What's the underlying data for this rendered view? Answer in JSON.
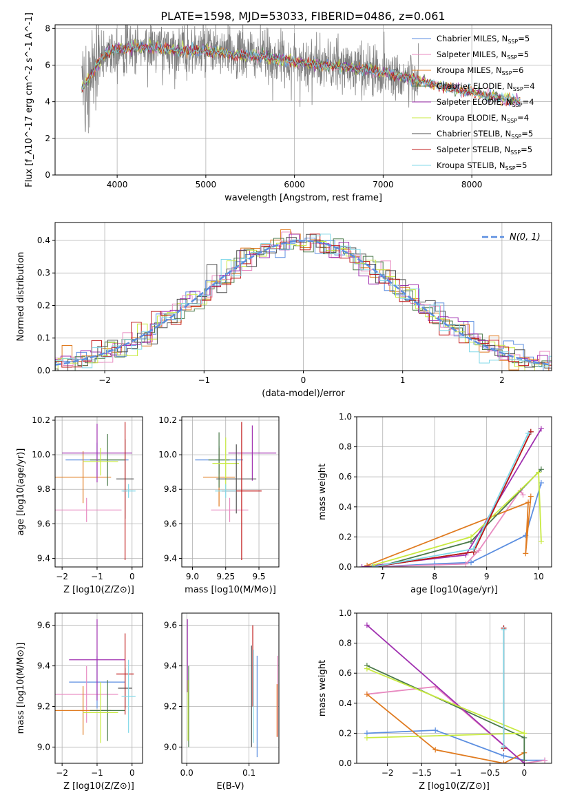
{
  "figure": {
    "title": "PLATE=1598, MJD=53033, FIBERID=0486, z=0.061"
  },
  "legend": [
    {
      "name": "Chabrier MILES, N",
      "sub": "SSP",
      "val": "=5",
      "color": "#5b8ee0"
    },
    {
      "name": "Salpeter MILES, N",
      "sub": "SSP",
      "val": "=5",
      "color": "#e88ac0"
    },
    {
      "name": "Kroupa MILES, N",
      "sub": "SSP",
      "val": "=6",
      "color": "#e07b20"
    },
    {
      "name": "Chabrier ELODIE, N",
      "sub": "SSP",
      "val": "=4",
      "color": "#4a7a4a"
    },
    {
      "name": "Salpeter ELODIE, N",
      "sub": "SSP",
      "val": "=4",
      "color": "#a030b0"
    },
    {
      "name": "Kroupa ELODIE, N",
      "sub": "SSP",
      "val": "=4",
      "color": "#c8ea40"
    },
    {
      "name": "Chabrier STELIB, N",
      "sub": "SSP",
      "val": "=5",
      "color": "#505050"
    },
    {
      "name": "Salpeter STELIB, N",
      "sub": "SSP",
      "val": "=5",
      "color": "#c01818"
    },
    {
      "name": "Kroupa STELIB, N",
      "sub": "SSP",
      "val": "=5",
      "color": "#80d8e8"
    }
  ],
  "chart_data": [
    {
      "id": "spectrum",
      "type": "line",
      "xlabel": "wavelength [Angstrom, rest frame]",
      "ylabel": "Flux [f_λ10^-17 erg cm^-2 s^-1 A^-1]",
      "xlim": [
        3300,
        8900
      ],
      "ylim": [
        0,
        8.2
      ],
      "xticks": [
        4000,
        5000,
        6000,
        7000,
        8000
      ],
      "yticks": [
        0,
        2,
        4,
        6,
        8
      ],
      "data_color": "#808080",
      "data_range": [
        3600,
        7400
      ],
      "model_range": [
        3600,
        8550
      ],
      "model_points": [
        [
          3600,
          4.7
        ],
        [
          3700,
          5.4
        ],
        [
          3800,
          6.2
        ],
        [
          3900,
          6.8
        ],
        [
          4000,
          6.9
        ],
        [
          4200,
          7.0
        ],
        [
          4500,
          6.9
        ],
        [
          4800,
          6.8
        ],
        [
          5000,
          6.8
        ],
        [
          5300,
          6.6
        ],
        [
          5600,
          6.5
        ],
        [
          6000,
          6.2
        ],
        [
          6300,
          6.0
        ],
        [
          6600,
          5.9
        ],
        [
          6900,
          5.7
        ],
        [
          7200,
          5.4
        ],
        [
          7500,
          5.0
        ],
        [
          7800,
          4.7
        ],
        [
          8100,
          4.4
        ],
        [
          8300,
          4.2
        ],
        [
          8550,
          4.0
        ]
      ]
    },
    {
      "id": "residuals",
      "type": "histogram",
      "xlabel": "(data-model)/error",
      "ylabel": "Normed distribution",
      "xlim": [
        -2.5,
        2.5
      ],
      "ylim": [
        0,
        0.455
      ],
      "xticks": [
        -2,
        -1,
        0,
        1,
        2
      ],
      "yticks": [
        0.0,
        0.1,
        0.2,
        0.3,
        0.4
      ],
      "gaussian_label": "N(0, 1)",
      "gaussian_color": "#5b8ee0",
      "bin_width": 0.1
    },
    {
      "id": "age-vs-Z",
      "type": "scatter",
      "xlabel": "Z [log10(Z/Z⊙)]",
      "ylabel": "age  [log10(age/yr)]",
      "xlim": [
        -2.2,
        0.3
      ],
      "ylim": [
        9.35,
        10.22
      ],
      "xticks": [
        -2,
        -1,
        0
      ],
      "yticks": [
        9.4,
        9.6,
        9.8,
        10.0,
        10.2
      ],
      "points": [
        {
          "x": -1.0,
          "y": 9.97,
          "xerr": 0.9,
          "yerr": 0.1,
          "color": "#5b8ee0"
        },
        {
          "x": -1.3,
          "y": 9.68,
          "xerr": 1.0,
          "yerr": 0.07,
          "color": "#e88ac0"
        },
        {
          "x": -1.4,
          "y": 9.87,
          "xerr": 0.8,
          "yerr": 0.15,
          "color": "#e07b20"
        },
        {
          "x": -0.7,
          "y": 9.97,
          "xerr": 0.5,
          "yerr": 0.15,
          "color": "#4a7a4a"
        },
        {
          "x": -1.0,
          "y": 10.01,
          "xerr": 1.0,
          "yerr": 0.17,
          "color": "#a030b0"
        },
        {
          "x": -0.9,
          "y": 9.96,
          "xerr": 0.5,
          "yerr": 0.08,
          "color": "#c8ea40"
        },
        {
          "x": -0.2,
          "y": 9.86,
          "xerr": 0.25,
          "yerr": 0.23,
          "color": "#505050"
        },
        {
          "x": -0.2,
          "y": 9.79,
          "xerr": 0.05,
          "yerr": 0.4,
          "color": "#c01818"
        },
        {
          "x": -0.1,
          "y": 9.79,
          "xerr": 0.2,
          "yerr": 0.04,
          "color": "#80d8e8"
        }
      ]
    },
    {
      "id": "age-vs-mass",
      "type": "scatter",
      "xlabel": "mass [log10(M/M⊙)]",
      "ylabel": "",
      "xlim": [
        8.92,
        9.65
      ],
      "ylim": [
        9.35,
        10.22
      ],
      "xticks": [
        9.0,
        9.25,
        9.5
      ],
      "yticks": [
        9.4,
        9.6,
        9.8,
        10.0,
        10.2
      ],
      "points": [
        {
          "x": 9.2,
          "y": 9.97,
          "xerr": 0.18,
          "yerr": 0.08,
          "color": "#5b8ee0"
        },
        {
          "x": 9.28,
          "y": 9.68,
          "xerr": 0.14,
          "yerr": 0.07,
          "color": "#e88ac0"
        },
        {
          "x": 9.2,
          "y": 9.87,
          "xerr": 0.12,
          "yerr": 0.17,
          "color": "#e07b20"
        },
        {
          "x": 9.2,
          "y": 9.97,
          "xerr": 0.08,
          "yerr": 0.16,
          "color": "#4a7a4a"
        },
        {
          "x": 9.45,
          "y": 10.01,
          "xerr": 0.18,
          "yerr": 0.16,
          "color": "#a030b0"
        },
        {
          "x": 9.25,
          "y": 9.95,
          "xerr": 0.1,
          "yerr": 0.15,
          "color": "#c8ea40"
        },
        {
          "x": 9.33,
          "y": 9.86,
          "xerr": 0.15,
          "yerr": 0.2,
          "color": "#505050"
        },
        {
          "x": 9.37,
          "y": 9.79,
          "xerr": 0.15,
          "yerr": 0.4,
          "color": "#c01818"
        },
        {
          "x": 9.25,
          "y": 9.79,
          "xerr": 0.08,
          "yerr": 0.04,
          "color": "#80d8e8"
        }
      ]
    },
    {
      "id": "massweight-vs-age",
      "type": "line",
      "xlabel": "age  [log10(age/yr)]",
      "ylabel": "mass weight",
      "xlim": [
        6.5,
        10.25
      ],
      "ylim": [
        0,
        1.0
      ],
      "xticks": [
        7,
        8,
        9,
        10
      ],
      "yticks": [
        0.0,
        0.2,
        0.4,
        0.6,
        0.8,
        1.0
      ],
      "series": [
        {
          "color": "#5b8ee0",
          "points": [
            [
              6.8,
              0.0
            ],
            [
              8.0,
              0.02
            ],
            [
              8.7,
              0.03
            ],
            [
              9.75,
              0.21
            ],
            [
              10.05,
              0.56
            ]
          ]
        },
        {
          "color": "#e88ac0",
          "points": [
            [
              6.8,
              0.0
            ],
            [
              8.6,
              0.02
            ],
            [
              8.85,
              0.11
            ],
            [
              9.65,
              0.51
            ],
            [
              9.7,
              0.48
            ]
          ]
        },
        {
          "color": "#e07b20",
          "points": [
            [
              6.7,
              0.01
            ],
            [
              9.8,
              0.43
            ],
            [
              9.75,
              0.09
            ],
            [
              9.85,
              0.47
            ]
          ]
        },
        {
          "color": "#4a7a4a",
          "points": [
            [
              6.9,
              0.0
            ],
            [
              8.7,
              0.17
            ],
            [
              10.05,
              0.65
            ]
          ]
        },
        {
          "color": "#a030b0",
          "points": [
            [
              6.6,
              0.0
            ],
            [
              8.6,
              0.08
            ],
            [
              10.05,
              0.92
            ]
          ]
        },
        {
          "color": "#c8ea40",
          "points": [
            [
              6.8,
              0.01
            ],
            [
              8.7,
              0.2
            ],
            [
              10.0,
              0.63
            ],
            [
              10.05,
              0.17
            ]
          ]
        },
        {
          "color": "#505050",
          "points": [
            [
              6.8,
              0.0
            ],
            [
              8.75,
              0.1
            ],
            [
              9.85,
              0.9
            ]
          ]
        },
        {
          "color": "#c01818",
          "points": [
            [
              6.8,
              0.0
            ],
            [
              8.75,
              0.1
            ],
            [
              9.85,
              0.9
            ]
          ]
        },
        {
          "color": "#80d8e8",
          "points": [
            [
              6.8,
              0.0
            ],
            [
              8.75,
              0.12
            ],
            [
              9.8,
              0.89
            ]
          ]
        }
      ]
    },
    {
      "id": "mass-vs-Z",
      "type": "scatter",
      "xlabel": "Z [log10(Z/Z⊙)]",
      "ylabel": "mass [log10(M/M⊙)]",
      "xlim": [
        -2.2,
        0.3
      ],
      "ylim": [
        8.92,
        9.66
      ],
      "xticks": [
        -2,
        -1,
        0
      ],
      "yticks": [
        9.0,
        9.2,
        9.4,
        9.6
      ],
      "points": [
        {
          "x": -1.0,
          "y": 9.32,
          "xerr": 0.8,
          "yerr": 0.13,
          "color": "#5b8ee0"
        },
        {
          "x": -1.3,
          "y": 9.26,
          "xerr": 0.9,
          "yerr": 0.14,
          "color": "#e88ac0"
        },
        {
          "x": -1.4,
          "y": 9.18,
          "xerr": 0.8,
          "yerr": 0.12,
          "color": "#e07b20"
        },
        {
          "x": -0.7,
          "y": 9.18,
          "xerr": 0.5,
          "yerr": 0.15,
          "color": "#4a7a4a"
        },
        {
          "x": -1.0,
          "y": 9.43,
          "xerr": 0.8,
          "yerr": 0.2,
          "color": "#a030b0"
        },
        {
          "x": -0.9,
          "y": 9.17,
          "xerr": 0.5,
          "yerr": 0.15,
          "color": "#c8ea40"
        },
        {
          "x": -0.2,
          "y": 9.29,
          "xerr": 0.2,
          "yerr": 0.1,
          "color": "#505050"
        },
        {
          "x": -0.2,
          "y": 9.36,
          "xerr": 0.25,
          "yerr": 0.2,
          "color": "#c01818"
        },
        {
          "x": -0.1,
          "y": 9.25,
          "xerr": 0.2,
          "yerr": 0.18,
          "color": "#80d8e8"
        }
      ]
    },
    {
      "id": "mass-vs-EBV",
      "type": "scatter",
      "xlabel": "E(B-V)",
      "ylabel": "",
      "xlim": [
        -0.008,
        0.148
      ],
      "ylim": [
        8.92,
        9.66
      ],
      "xticks": [
        0.0,
        0.1
      ],
      "yticks": [
        9.0,
        9.2,
        9.4,
        9.6
      ],
      "points": [
        {
          "x": 0.113,
          "y": 9.2,
          "yerr": 0.25,
          "color": "#5b8ee0"
        },
        {
          "x": 0.146,
          "y": 9.25,
          "yerr": 0.2,
          "color": "#e88ac0"
        },
        {
          "x": 0.145,
          "y": 9.18,
          "yerr": 0.13,
          "color": "#e07b20"
        },
        {
          "x": 0.003,
          "y": 9.2,
          "yerr": 0.2,
          "color": "#4a7a4a"
        },
        {
          "x": 0.001,
          "y": 9.45,
          "yerr": 0.18,
          "color": "#a030b0"
        },
        {
          "x": 0.002,
          "y": 9.18,
          "yerr": 0.15,
          "color": "#c8ea40"
        },
        {
          "x": 0.104,
          "y": 9.25,
          "yerr": 0.25,
          "color": "#505050"
        },
        {
          "x": 0.106,
          "y": 9.4,
          "yerr": 0.2,
          "color": "#c01818"
        },
        {
          "x": 0.107,
          "y": 9.25,
          "yerr": 0.23,
          "color": "#80d8e8"
        }
      ]
    },
    {
      "id": "massweight-vs-Z",
      "type": "line",
      "xlabel": "Z [log10(Z/Z⊙)]",
      "ylabel": "mass weight",
      "xlim": [
        -2.45,
        0.4
      ],
      "ylim": [
        0,
        1.0
      ],
      "xticks": [
        -2.0,
        -1.5,
        -1.0,
        -0.5,
        0.0
      ],
      "yticks": [
        0.0,
        0.2,
        0.4,
        0.6,
        0.8,
        1.0
      ],
      "series": [
        {
          "color": "#5b8ee0",
          "points": [
            [
              -2.3,
              0.2
            ],
            [
              -1.3,
              0.22
            ],
            [
              -0.3,
              0.05
            ],
            [
              0.0,
              0.02
            ],
            [
              0.3,
              0.02
            ]
          ]
        },
        {
          "color": "#e88ac0",
          "points": [
            [
              -2.3,
              0.46
            ],
            [
              -1.3,
              0.51
            ],
            [
              0.0,
              0.0
            ],
            [
              0.3,
              0.02
            ]
          ]
        },
        {
          "color": "#e07b20",
          "points": [
            [
              -2.3,
              0.46
            ],
            [
              -1.3,
              0.09
            ],
            [
              -0.3,
              0.0
            ],
            [
              0.0,
              0.07
            ]
          ]
        },
        {
          "color": "#4a7a4a",
          "points": [
            [
              -2.3,
              0.65
            ],
            [
              0.0,
              0.17
            ],
            [
              0.0,
              0.02
            ]
          ]
        },
        {
          "color": "#a030b0",
          "points": [
            [
              -2.3,
              0.92
            ],
            [
              0.0,
              0.0
            ]
          ]
        },
        {
          "color": "#c8ea40",
          "points": [
            [
              -2.3,
              0.63
            ],
            [
              0.0,
              0.2
            ],
            [
              -2.3,
              0.17
            ]
          ]
        },
        {
          "color": "#505050",
          "points": [
            [
              -0.3,
              0.9
            ],
            [
              -0.3,
              0.1
            ]
          ]
        },
        {
          "color": "#c01818",
          "points": [
            [
              -0.3,
              0.9
            ],
            [
              -0.3,
              0.1
            ]
          ]
        },
        {
          "color": "#80d8e8",
          "points": [
            [
              -0.3,
              0.89
            ],
            [
              -0.3,
              0.11
            ]
          ]
        }
      ]
    }
  ]
}
